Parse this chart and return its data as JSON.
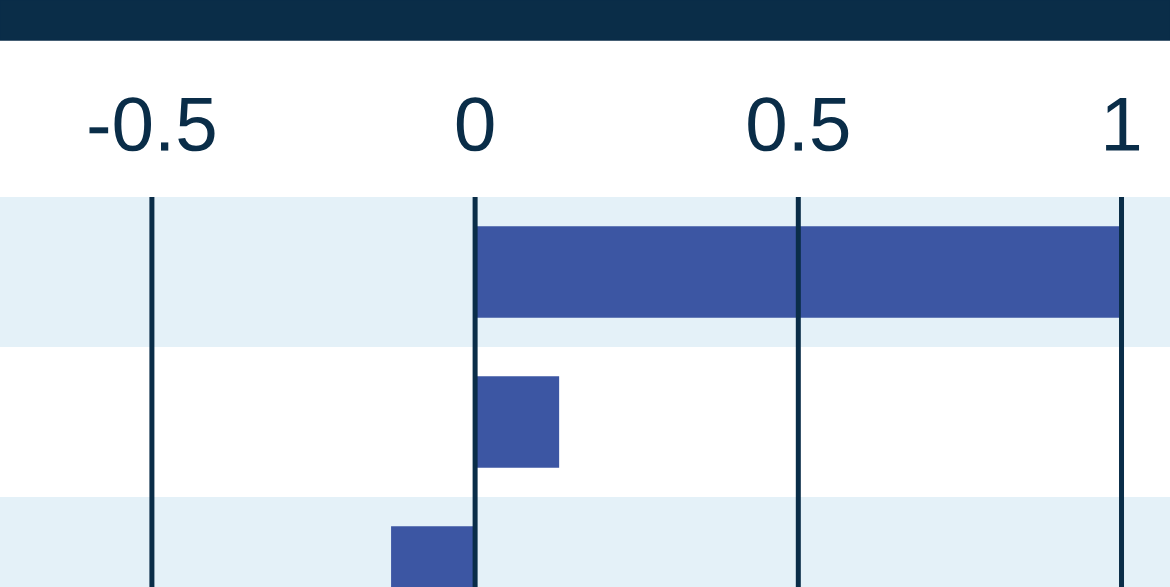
{
  "chart_data": {
    "type": "bar",
    "orientation": "horizontal",
    "categories": [
      null,
      null,
      null
    ],
    "values": [
      1.0,
      0.13,
      -0.13
    ],
    "color": "#3c56a3",
    "xlim": [
      -0.735,
      1.075
    ],
    "xticks": [
      {
        "value": -0.5,
        "label": "-0.5"
      },
      0,
      0.5,
      1
    ],
    "grid": "x",
    "tick_labels": "x"
  }
}
